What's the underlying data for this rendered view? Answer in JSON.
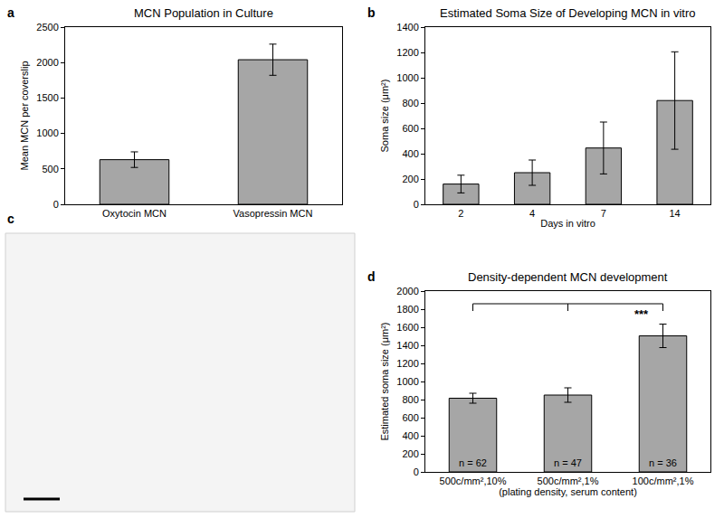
{
  "chart_data": [
    {
      "panel": "a",
      "type": "bar",
      "title": "MCN Population in Culture",
      "y_label": "Mean MCN per coverslip",
      "categories": [
        "Oxytocin MCN",
        "Vasopressin MCN"
      ],
      "values": [
        630,
        2040
      ],
      "errors": [
        110,
        220
      ],
      "color": "#a6a6a6",
      "ylim": [
        0,
        2500
      ],
      "yticks": [
        0,
        500,
        1000,
        1500,
        2000,
        2500
      ],
      "grid": false
    },
    {
      "panel": "b",
      "type": "bar",
      "title": "Estimated Soma Size of Developing MCN in vitro",
      "x_label": "Days in vitro",
      "y_label": "Soma size (μm²)",
      "categories": [
        "2",
        "4",
        "7",
        "14"
      ],
      "values": [
        160,
        250,
        445,
        820
      ],
      "errors": [
        70,
        100,
        205,
        385
      ],
      "color": "#a6a6a6",
      "ylim": [
        0,
        1400
      ],
      "yticks": [
        0,
        200,
        400,
        600,
        800,
        1000,
        1200,
        1400
      ],
      "grid": false
    },
    {
      "panel": "c",
      "type": "image"
    },
    {
      "panel": "d",
      "type": "bar",
      "title": "Density-dependent MCN development",
      "x_label": "(plating density, serum content)",
      "y_label": "Estimated soma size (μm²)",
      "categories": [
        "500c/mm²,10%",
        "500c/mm²,1%",
        "100c/mm²,1%"
      ],
      "values": [
        815,
        850,
        1505
      ],
      "errors": [
        55,
        80,
        130
      ],
      "annotations": [
        {
          "category": "500c/mm²,10%",
          "text": "n = 62"
        },
        {
          "category": "500c/mm²,1%",
          "text": "n = 47"
        },
        {
          "category": "100c/mm²,1%",
          "text": "n = 36"
        }
      ],
      "significance": {
        "from": "500c/mm²,10%",
        "to": "100c/mm²,1%",
        "text": "***"
      },
      "color": "#a6a6a6",
      "ylim": [
        0,
        2000
      ],
      "yticks": [
        0,
        200,
        400,
        600,
        800,
        1000,
        1200,
        1400,
        1600,
        1800,
        2000
      ],
      "grid": false
    }
  ]
}
